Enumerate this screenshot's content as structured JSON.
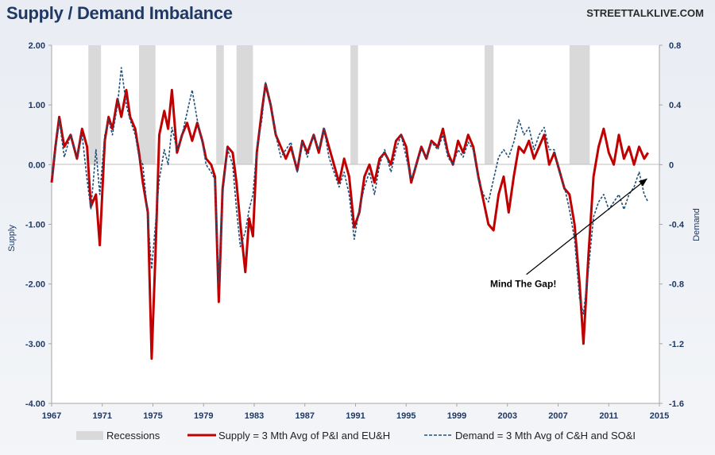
{
  "header": {
    "title": "Supply / Demand Imbalance",
    "brand": "STREETTALKLIVE.COM"
  },
  "colors": {
    "supply": "#c00000",
    "demand": "#1f4e79",
    "recession": "#d9d9d9",
    "axis_text": "#1f3864"
  },
  "chart_data": {
    "type": "line",
    "ylabel": "Supply",
    "y2label": "Demand",
    "x_ticks": [
      "1967",
      "1971",
      "1975",
      "1979",
      "1983",
      "1987",
      "1991",
      "1995",
      "1999",
      "2003",
      "2007",
      "2011",
      "2015"
    ],
    "xlim": [
      1967,
      2015
    ],
    "ylim": [
      -4,
      2
    ],
    "y_ticks": [
      "2.00",
      "1.00",
      "0.00",
      "-1.00",
      "-2.00",
      "-3.00",
      "-4.00"
    ],
    "y2lim": [
      -1.6,
      0.8
    ],
    "y2_ticks": [
      "0.8",
      "0.4",
      "0",
      "-0.4",
      "-0.8",
      "-1.2",
      "-1.6"
    ],
    "grid": false,
    "legend_position": "bottom",
    "recessions": [
      [
        1969.9,
        1970.9
      ],
      [
        1973.9,
        1975.2
      ],
      [
        1980.0,
        1980.6
      ],
      [
        1981.6,
        1982.9
      ],
      [
        1990.6,
        1991.2
      ],
      [
        2001.2,
        2001.9
      ],
      [
        2007.9,
        2009.5
      ]
    ],
    "annotation": {
      "text": "Mind The Gap!",
      "arrow_from": [
        2004.5,
        -1.84
      ],
      "arrow_to": [
        2014.0,
        -0.24
      ]
    },
    "series": [
      {
        "name": "Supply = 3 Mth Avg of P&I and EU&H",
        "axis": "left",
        "style": "solid",
        "points": [
          [
            1967.0,
            -0.3
          ],
          [
            1967.3,
            0.3
          ],
          [
            1967.6,
            0.8
          ],
          [
            1968.0,
            0.3
          ],
          [
            1968.5,
            0.5
          ],
          [
            1969.0,
            0.1
          ],
          [
            1969.4,
            0.6
          ],
          [
            1969.8,
            0.3
          ],
          [
            1970.1,
            -0.7
          ],
          [
            1970.5,
            -0.5
          ],
          [
            1970.8,
            -1.35
          ],
          [
            1971.2,
            0.4
          ],
          [
            1971.5,
            0.8
          ],
          [
            1971.8,
            0.6
          ],
          [
            1972.2,
            1.1
          ],
          [
            1972.5,
            0.8
          ],
          [
            1972.9,
            1.25
          ],
          [
            1973.2,
            0.8
          ],
          [
            1973.6,
            0.6
          ],
          [
            1973.9,
            0.2
          ],
          [
            1974.2,
            -0.3
          ],
          [
            1974.6,
            -0.8
          ],
          [
            1974.9,
            -3.25
          ],
          [
            1975.2,
            -1.5
          ],
          [
            1975.5,
            0.5
          ],
          [
            1975.9,
            0.9
          ],
          [
            1976.2,
            0.6
          ],
          [
            1976.5,
            1.25
          ],
          [
            1976.9,
            0.2
          ],
          [
            1977.3,
            0.5
          ],
          [
            1977.7,
            0.7
          ],
          [
            1978.1,
            0.4
          ],
          [
            1978.5,
            0.7
          ],
          [
            1978.9,
            0.4
          ],
          [
            1979.2,
            0.1
          ],
          [
            1979.6,
            0.0
          ],
          [
            1979.9,
            -0.2
          ],
          [
            1980.2,
            -2.3
          ],
          [
            1980.5,
            -0.4
          ],
          [
            1980.9,
            0.3
          ],
          [
            1981.3,
            0.2
          ],
          [
            1981.6,
            -0.3
          ],
          [
            1981.9,
            -1.0
          ],
          [
            1982.3,
            -1.8
          ],
          [
            1982.6,
            -0.9
          ],
          [
            1982.9,
            -1.2
          ],
          [
            1983.2,
            0.2
          ],
          [
            1983.6,
            0.9
          ],
          [
            1983.9,
            1.35
          ],
          [
            1984.3,
            1.0
          ],
          [
            1984.7,
            0.5
          ],
          [
            1985.1,
            0.3
          ],
          [
            1985.5,
            0.1
          ],
          [
            1985.9,
            0.3
          ],
          [
            1986.4,
            -0.1
          ],
          [
            1986.8,
            0.4
          ],
          [
            1987.2,
            0.2
          ],
          [
            1987.7,
            0.5
          ],
          [
            1988.1,
            0.2
          ],
          [
            1988.5,
            0.6
          ],
          [
            1988.9,
            0.3
          ],
          [
            1989.3,
            0.0
          ],
          [
            1989.7,
            -0.3
          ],
          [
            1990.1,
            0.1
          ],
          [
            1990.5,
            -0.2
          ],
          [
            1990.9,
            -1.05
          ],
          [
            1991.3,
            -0.8
          ],
          [
            1991.7,
            -0.2
          ],
          [
            1992.1,
            0.0
          ],
          [
            1992.5,
            -0.3
          ],
          [
            1992.9,
            0.1
          ],
          [
            1993.3,
            0.2
          ],
          [
            1993.8,
            0.0
          ],
          [
            1994.2,
            0.4
          ],
          [
            1994.6,
            0.5
          ],
          [
            1995.0,
            0.3
          ],
          [
            1995.4,
            -0.3
          ],
          [
            1995.8,
            0.0
          ],
          [
            1996.2,
            0.3
          ],
          [
            1996.6,
            0.1
          ],
          [
            1997.0,
            0.4
          ],
          [
            1997.5,
            0.3
          ],
          [
            1997.9,
            0.6
          ],
          [
            1998.3,
            0.2
          ],
          [
            1998.7,
            0.0
          ],
          [
            1999.1,
            0.4
          ],
          [
            1999.5,
            0.2
          ],
          [
            1999.9,
            0.5
          ],
          [
            2000.3,
            0.3
          ],
          [
            2000.7,
            -0.2
          ],
          [
            2001.1,
            -0.6
          ],
          [
            2001.5,
            -1.0
          ],
          [
            2001.9,
            -1.1
          ],
          [
            2002.3,
            -0.5
          ],
          [
            2002.7,
            -0.2
          ],
          [
            2003.1,
            -0.8
          ],
          [
            2003.5,
            -0.2
          ],
          [
            2003.9,
            0.3
          ],
          [
            2004.3,
            0.2
          ],
          [
            2004.7,
            0.4
          ],
          [
            2005.1,
            0.1
          ],
          [
            2005.5,
            0.3
          ],
          [
            2005.9,
            0.5
          ],
          [
            2006.3,
            0.0
          ],
          [
            2006.7,
            0.2
          ],
          [
            2007.1,
            -0.1
          ],
          [
            2007.5,
            -0.4
          ],
          [
            2007.9,
            -0.5
          ],
          [
            2008.3,
            -1.0
          ],
          [
            2008.7,
            -2.0
          ],
          [
            2009.0,
            -3.0
          ],
          [
            2009.4,
            -1.5
          ],
          [
            2009.8,
            -0.2
          ],
          [
            2010.2,
            0.3
          ],
          [
            2010.6,
            0.6
          ],
          [
            2011.0,
            0.2
          ],
          [
            2011.4,
            0.0
          ],
          [
            2011.8,
            0.5
          ],
          [
            2012.2,
            0.1
          ],
          [
            2012.6,
            0.3
          ],
          [
            2013.0,
            0.0
          ],
          [
            2013.4,
            0.3
          ],
          [
            2013.8,
            0.1
          ],
          [
            2014.1,
            0.2
          ]
        ]
      },
      {
        "name": "Demand = 3 Mth Avg of C&H and SO&I",
        "axis": "right",
        "style": "dashed",
        "points": [
          [
            1967.0,
            -0.1
          ],
          [
            1967.3,
            0.1
          ],
          [
            1967.6,
            0.3
          ],
          [
            1968.0,
            0.05
          ],
          [
            1968.5,
            0.2
          ],
          [
            1969.0,
            0.05
          ],
          [
            1969.4,
            0.2
          ],
          [
            1969.8,
            -0.1
          ],
          [
            1970.1,
            -0.3
          ],
          [
            1970.5,
            0.1
          ],
          [
            1970.8,
            -0.2
          ],
          [
            1971.2,
            0.2
          ],
          [
            1971.5,
            0.3
          ],
          [
            1971.8,
            0.2
          ],
          [
            1972.2,
            0.4
          ],
          [
            1972.5,
            0.65
          ],
          [
            1972.9,
            0.4
          ],
          [
            1973.2,
            0.3
          ],
          [
            1973.6,
            0.2
          ],
          [
            1973.9,
            0.05
          ],
          [
            1974.2,
            0.0
          ],
          [
            1974.6,
            -0.35
          ],
          [
            1974.9,
            -0.7
          ],
          [
            1975.2,
            -0.4
          ],
          [
            1975.5,
            -0.1
          ],
          [
            1975.9,
            0.1
          ],
          [
            1976.2,
            0.0
          ],
          [
            1976.5,
            0.25
          ],
          [
            1976.9,
            0.1
          ],
          [
            1977.3,
            0.2
          ],
          [
            1977.7,
            0.35
          ],
          [
            1978.1,
            0.5
          ],
          [
            1978.5,
            0.3
          ],
          [
            1978.9,
            0.15
          ],
          [
            1979.2,
            0.0
          ],
          [
            1979.6,
            -0.05
          ],
          [
            1979.9,
            -0.1
          ],
          [
            1980.2,
            -0.8
          ],
          [
            1980.5,
            -0.2
          ],
          [
            1980.9,
            0.1
          ],
          [
            1981.3,
            0.0
          ],
          [
            1981.6,
            -0.3
          ],
          [
            1981.9,
            -0.55
          ],
          [
            1982.3,
            -0.45
          ],
          [
            1982.6,
            -0.3
          ],
          [
            1982.9,
            -0.2
          ],
          [
            1983.2,
            0.1
          ],
          [
            1983.6,
            0.3
          ],
          [
            1983.9,
            0.55
          ],
          [
            1984.3,
            0.4
          ],
          [
            1984.7,
            0.2
          ],
          [
            1985.1,
            0.05
          ],
          [
            1985.5,
            0.1
          ],
          [
            1985.9,
            0.15
          ],
          [
            1986.4,
            -0.05
          ],
          [
            1986.8,
            0.15
          ],
          [
            1987.2,
            0.05
          ],
          [
            1987.7,
            0.2
          ],
          [
            1988.1,
            0.1
          ],
          [
            1988.5,
            0.25
          ],
          [
            1988.9,
            0.05
          ],
          [
            1989.3,
            -0.05
          ],
          [
            1989.7,
            -0.15
          ],
          [
            1990.1,
            -0.05
          ],
          [
            1990.5,
            -0.2
          ],
          [
            1990.9,
            -0.5
          ],
          [
            1991.3,
            -0.3
          ],
          [
            1991.7,
            -0.15
          ],
          [
            1992.1,
            -0.05
          ],
          [
            1992.5,
            -0.2
          ],
          [
            1992.9,
            0.0
          ],
          [
            1993.3,
            0.1
          ],
          [
            1993.8,
            -0.05
          ],
          [
            1994.2,
            0.1
          ],
          [
            1994.6,
            0.2
          ],
          [
            1995.0,
            0.05
          ],
          [
            1995.4,
            -0.1
          ],
          [
            1995.8,
            0.0
          ],
          [
            1996.2,
            0.1
          ],
          [
            1996.6,
            0.05
          ],
          [
            1997.0,
            0.15
          ],
          [
            1997.5,
            0.1
          ],
          [
            1997.9,
            0.2
          ],
          [
            1998.3,
            0.05
          ],
          [
            1998.7,
            0.0
          ],
          [
            1999.1,
            0.1
          ],
          [
            1999.5,
            0.05
          ],
          [
            1999.9,
            0.15
          ],
          [
            2000.3,
            0.1
          ],
          [
            2000.7,
            -0.1
          ],
          [
            2001.1,
            -0.2
          ],
          [
            2001.5,
            -0.25
          ],
          [
            2001.9,
            -0.1
          ],
          [
            2002.3,
            0.05
          ],
          [
            2002.7,
            0.1
          ],
          [
            2003.1,
            0.05
          ],
          [
            2003.5,
            0.15
          ],
          [
            2003.9,
            0.3
          ],
          [
            2004.3,
            0.2
          ],
          [
            2004.7,
            0.25
          ],
          [
            2005.1,
            0.1
          ],
          [
            2005.5,
            0.2
          ],
          [
            2005.9,
            0.25
          ],
          [
            2006.3,
            0.1
          ],
          [
            2006.7,
            0.1
          ],
          [
            2007.1,
            -0.05
          ],
          [
            2007.5,
            -0.15
          ],
          [
            2007.9,
            -0.3
          ],
          [
            2008.3,
            -0.5
          ],
          [
            2008.7,
            -0.9
          ],
          [
            2009.0,
            -1.0
          ],
          [
            2009.4,
            -0.7
          ],
          [
            2009.8,
            -0.35
          ],
          [
            2010.2,
            -0.25
          ],
          [
            2010.6,
            -0.2
          ],
          [
            2011.0,
            -0.3
          ],
          [
            2011.4,
            -0.25
          ],
          [
            2011.8,
            -0.2
          ],
          [
            2012.2,
            -0.3
          ],
          [
            2012.6,
            -0.2
          ],
          [
            2013.0,
            -0.15
          ],
          [
            2013.4,
            -0.05
          ],
          [
            2013.8,
            -0.2
          ],
          [
            2014.1,
            -0.25
          ]
        ]
      }
    ],
    "legend": [
      {
        "label": "Recessions",
        "kind": "band"
      },
      {
        "label": "Supply = 3 Mth Avg of P&I and EU&H",
        "kind": "solid"
      },
      {
        "label": "Demand = 3 Mth Avg of C&H and SO&I",
        "kind": "dashed"
      }
    ]
  }
}
